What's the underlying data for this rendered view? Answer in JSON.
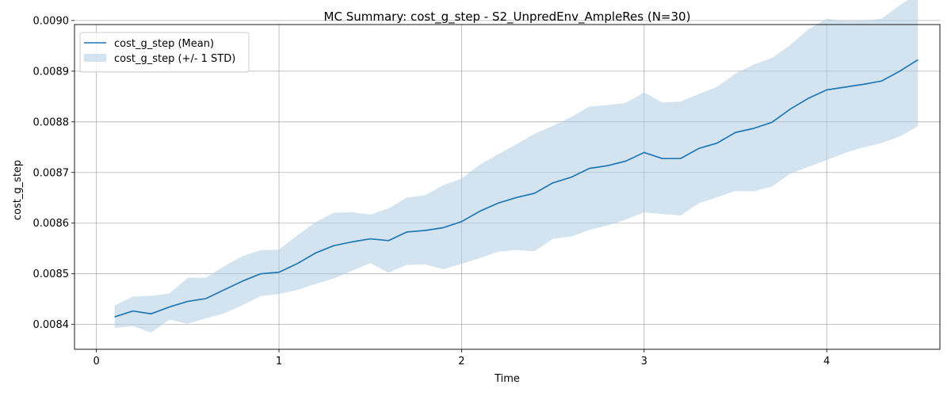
{
  "chart_data": {
    "type": "line",
    "title": "MC Summary: cost_g_step - S2_UnpredEnv_AmpleRes (N=30)",
    "xlabel": "Time",
    "ylabel": "cost_g_step",
    "xlim": [
      -0.12,
      4.62
    ],
    "ylim": [
      0.008351,
      0.008992
    ],
    "xticks": [
      0,
      1,
      2,
      3,
      4
    ],
    "yticks": [
      0.0084,
      0.0085,
      0.0086,
      0.0087,
      0.0088,
      0.0089,
      0.009
    ],
    "grid": true,
    "legend_position": "top-left",
    "x": [
      0.1,
      0.2,
      0.3,
      0.4,
      0.5,
      0.6,
      0.7,
      0.8,
      0.9,
      1.0,
      1.1,
      1.2,
      1.3,
      1.4,
      1.5,
      1.6,
      1.7,
      1.8,
      1.9,
      2.0,
      2.1,
      2.2,
      2.3,
      2.4,
      2.5,
      2.6,
      2.7,
      2.8,
      2.9,
      3.0,
      3.1,
      3.2,
      3.3,
      3.4,
      3.5,
      3.6,
      3.7,
      3.8,
      3.9,
      4.0,
      4.1,
      4.2,
      4.3,
      4.4,
      4.5
    ],
    "series": [
      {
        "name": "cost_g_step (Mean)",
        "color": "#1f77b4",
        "values": [
          0.008415,
          0.0084265,
          0.008421,
          0.0084345,
          0.0084455,
          0.008451,
          0.0084685,
          0.0084855,
          0.0085,
          0.008503,
          0.00852,
          0.008541,
          0.0085555,
          0.008563,
          0.008569,
          0.0085655,
          0.0085825,
          0.0085855,
          0.008591,
          0.008603,
          0.0086235,
          0.0086395,
          0.0086505,
          0.008659,
          0.0086795,
          0.0086905,
          0.008708,
          0.0087135,
          0.0087225,
          0.0087395,
          0.0087275,
          0.0087275,
          0.0087475,
          0.008758,
          0.008779,
          0.008787,
          0.008799,
          0.008825,
          0.0088465,
          0.008863,
          0.0088685,
          0.008874,
          0.0088805,
          0.0089,
          0.0089225
        ]
      },
      {
        "name": "cost_g_step (+/- 1 STD)",
        "color": "#aecde4",
        "lower": [
          0.008393,
          0.008397,
          0.008384,
          0.0084095,
          0.0084015,
          0.008412,
          0.008422,
          0.008438,
          0.008456,
          0.00846,
          0.008468,
          0.00848,
          0.0084905,
          0.008506,
          0.008521,
          0.008502,
          0.0085175,
          0.0085185,
          0.008509,
          0.0085195,
          0.008531,
          0.0085435,
          0.008547,
          0.0085445,
          0.008569,
          0.0085735,
          0.0085865,
          0.0085955,
          0.008607,
          0.0086215,
          0.008618,
          0.008615,
          0.0086395,
          0.008651,
          0.0086635,
          0.0086625,
          0.0086725,
          0.0086975,
          0.008711,
          0.0087245,
          0.0087385,
          0.0087495,
          0.008758,
          0.008771,
          0.0087915
        ],
        "upper": [
          0.0084375,
          0.008455,
          0.0084565,
          0.008461,
          0.008492,
          0.0084925,
          0.008515,
          0.008535,
          0.0085465,
          0.0085475,
          0.0085755,
          0.008602,
          0.0086205,
          0.0086215,
          0.008617,
          0.008629,
          0.0086505,
          0.008655,
          0.008675,
          0.008688,
          0.0087155,
          0.008736,
          0.0087555,
          0.0087765,
          0.008792,
          0.0088095,
          0.00883,
          0.008833,
          0.0088375,
          0.008858,
          0.008838,
          0.00884,
          0.008855,
          0.008869,
          0.008895,
          0.008913,
          0.008926,
          0.0089515,
          0.0089825,
          0.0090035,
          0.008999,
          0.0089995,
          0.0090035,
          0.00903,
          0.009054
        ]
      }
    ]
  }
}
